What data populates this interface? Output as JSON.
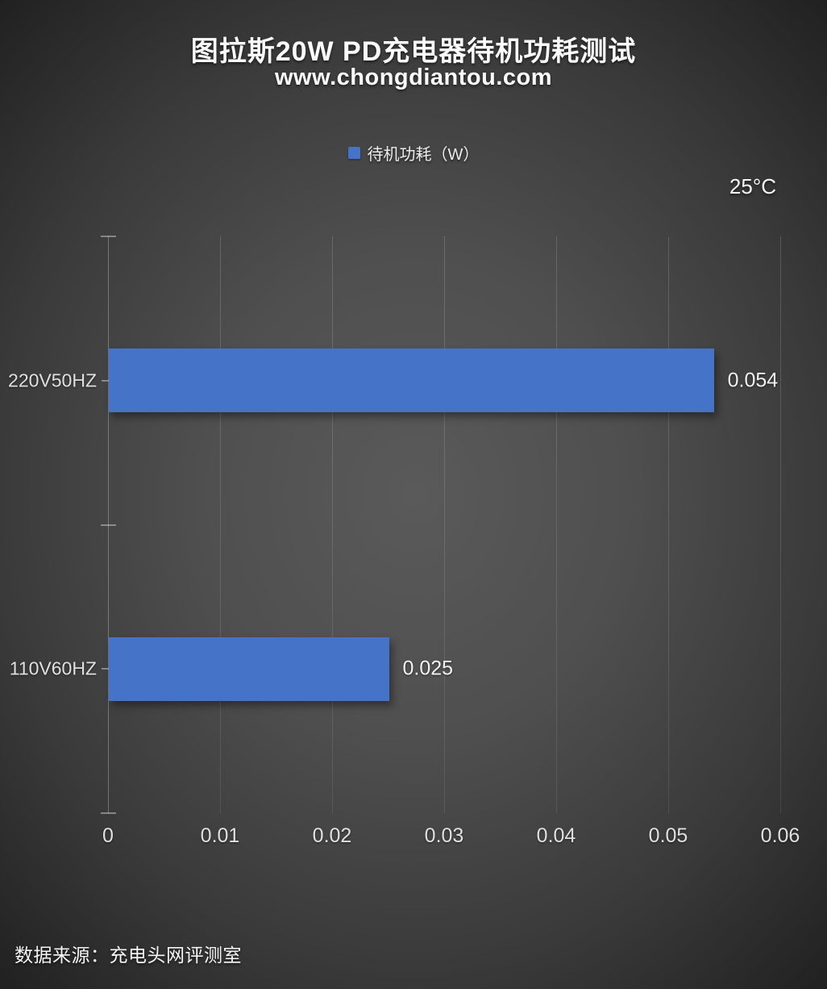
{
  "header": {
    "title": "图拉斯20W PD充电器待机功耗测试",
    "subtitle": "www.chongdiantou.com"
  },
  "legend": {
    "label": "待机功耗（W）",
    "swatch_color": "#4573C8"
  },
  "annotation": {
    "temperature": "25°C"
  },
  "footer": {
    "source": "数据来源：充电头网评测室"
  },
  "chart_data": {
    "type": "bar",
    "orientation": "horizontal",
    "title": "图拉斯20W PD充电器待机功耗测试",
    "subtitle": "www.chongdiantou.com",
    "annotation": "25°C",
    "categories": [
      "220V50HZ",
      "110V60HZ"
    ],
    "series": [
      {
        "name": "待机功耗（W）",
        "values": [
          0.054,
          0.025
        ]
      }
    ],
    "value_labels": [
      "0.054",
      "0.025"
    ],
    "xlabel": "",
    "ylabel": "",
    "xlim": [
      0,
      0.06
    ],
    "x_ticks": [
      0,
      0.01,
      0.02,
      0.03,
      0.04,
      0.05,
      0.06
    ],
    "x_tick_labels": [
      "0",
      "0.01",
      "0.02",
      "0.03",
      "0.04",
      "0.05",
      "0.06"
    ],
    "grid": true,
    "legend_position": "top",
    "bar_color": "#4573C8"
  }
}
